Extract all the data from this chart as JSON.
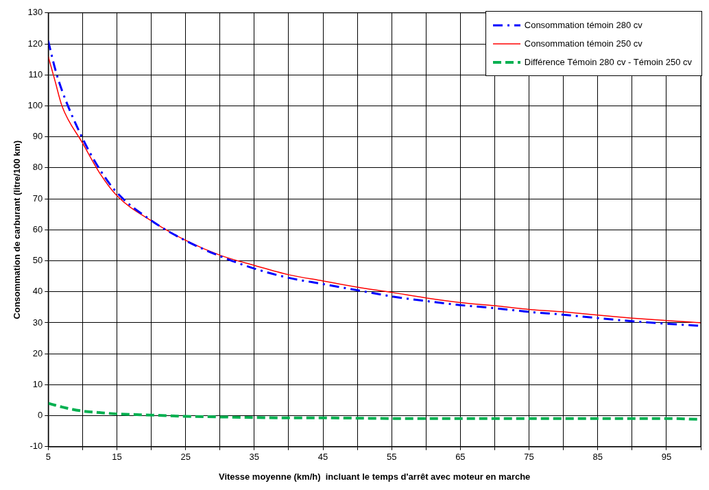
{
  "chart_data": {
    "type": "line",
    "xlabel": "Vitesse moyenne (km/h)  incluant le temps d'arrêt avec moteur en marche",
    "ylabel": "Consommation de carburant (litre/100 km)",
    "x": [
      5,
      6,
      7,
      10,
      12.5,
      15,
      20,
      25,
      30,
      35,
      40,
      45,
      50,
      55,
      60,
      65,
      70,
      75,
      80,
      85,
      90,
      95,
      100
    ],
    "series": [
      {
        "name": "Consommation témoin 280 cv",
        "color": "#0000ff",
        "line_style": "dashed",
        "values": [
          121,
          112,
          105,
          89.5,
          79.5,
          72,
          63,
          56.5,
          51.5,
          47.5,
          44.5,
          42.5,
          40.5,
          38.5,
          37,
          35.7,
          34.7,
          33.5,
          32.6,
          31.5,
          30.5,
          29.7,
          29
        ]
      },
      {
        "name": "Consommation témoin 250 cv",
        "color": "#ff0000",
        "line_style": "solid",
        "values": [
          116,
          108,
          100,
          88,
          78.3,
          71,
          62.9,
          56.6,
          51.8,
          48.5,
          45.5,
          43.5,
          41.5,
          39.8,
          38,
          36.5,
          35.5,
          34.3,
          33.5,
          32.5,
          31.5,
          30.7,
          30
        ]
      },
      {
        "name": "Différence Témoin 280 cv - Témoin 250 cv",
        "color": "#00b050",
        "line_style": "dashed",
        "values": [
          4,
          3.4,
          2.8,
          1.5,
          1,
          0.6,
          0.2,
          -0.2,
          -0.4,
          -0.6,
          -0.7,
          -0.7,
          -0.8,
          -0.9,
          -0.9,
          -0.9,
          -0.9,
          -0.9,
          -0.9,
          -0.9,
          -0.9,
          -0.9,
          -1.2
        ]
      }
    ],
    "xlim": [
      5,
      100
    ],
    "xticks": [
      5,
      {
        "value": 10,
        "label": null
      },
      15,
      {
        "value": 20,
        "label": null
      },
      25,
      {
        "value": 30,
        "label": null
      },
      35,
      {
        "value": 40,
        "label": null
      },
      45,
      {
        "value": 50,
        "label": null
      },
      55,
      {
        "value": 60,
        "label": null
      },
      65,
      {
        "value": 70,
        "label": null
      },
      75,
      {
        "value": 80,
        "label": null
      },
      85,
      {
        "value": 90,
        "label": null
      },
      95,
      {
        "value": 100,
        "label": null
      }
    ],
    "ylim": [
      -10,
      130
    ],
    "yticks": [
      -10,
      0,
      10,
      20,
      30,
      40,
      50,
      60,
      70,
      80,
      90,
      100,
      110,
      120,
      130
    ],
    "grid": true,
    "legend": "top right",
    "marker": "none"
  }
}
